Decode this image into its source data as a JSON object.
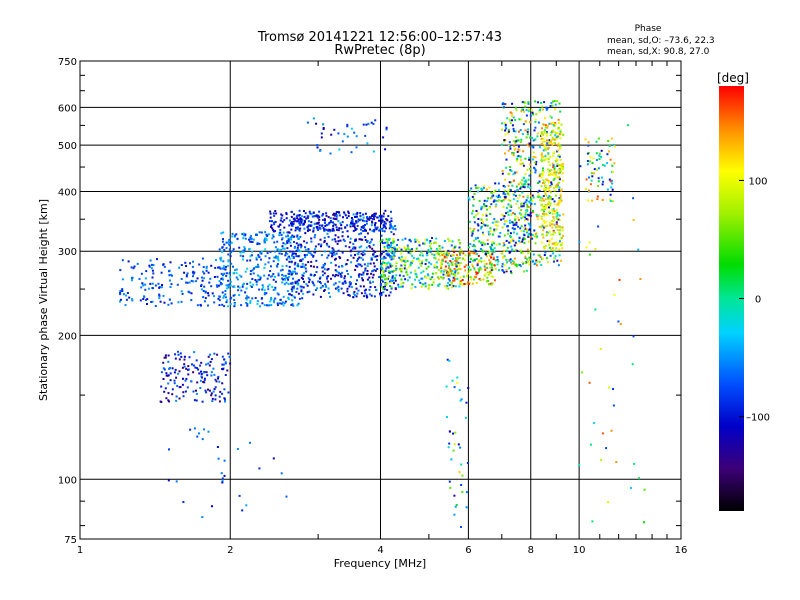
{
  "chart_data": {
    "type": "scatter",
    "title": "Tromsø 20141221 12:56:00–12:57:43",
    "subtitle": "RwPretec (8p)",
    "xlabel": "Frequency [MHz]",
    "ylabel": "Stationary phase Virtual Height [km]",
    "x_scale": "log",
    "y_scale": "log",
    "xlim": [
      1,
      16
    ],
    "ylim": [
      75,
      750
    ],
    "x_ticks": [
      "1",
      "2",
      "4",
      "6",
      "8",
      "10",
      "16"
    ],
    "y_ticks": [
      "750",
      "600",
      "500",
      "400",
      "300",
      "200",
      "100",
      "75"
    ],
    "grid": true,
    "stats": {
      "heading": "Phase",
      "line1": "mean, sd,O: –73.6, 22.3",
      "line2": "mean, sd,X:  90.8, 27.0"
    },
    "colorbar": {
      "label": "[deg]",
      "ticks": [
        "100",
        "0",
        "–100"
      ],
      "range": [
        -180,
        180
      ]
    },
    "clusters": [
      {
        "freq": [
          1.2,
          1.95
        ],
        "height": [
          230,
          290
        ],
        "phase": [
          -110,
          -40
        ],
        "n": 180
      },
      {
        "freq": [
          1.45,
          2.0
        ],
        "height": [
          145,
          185
        ],
        "phase": [
          -150,
          -50
        ],
        "n": 160
      },
      {
        "freq": [
          1.9,
          2.8
        ],
        "height": [
          230,
          330
        ],
        "phase": [
          -100,
          -20
        ],
        "n": 420
      },
      {
        "freq": [
          2.6,
          4.3
        ],
        "height": [
          240,
          360
        ],
        "phase": [
          -140,
          -40
        ],
        "n": 600
      },
      {
        "freq": [
          2.4,
          4.2
        ],
        "height": [
          330,
          365
        ],
        "phase": [
          -130,
          -70
        ],
        "n": 200
      },
      {
        "freq": [
          4.0,
          5.8
        ],
        "height": [
          250,
          320
        ],
        "phase": [
          -100,
          120
        ],
        "n": 350
      },
      {
        "freq": [
          5.2,
          6.8
        ],
        "height": [
          255,
          300
        ],
        "phase": [
          40,
          180
        ],
        "n": 160
      },
      {
        "freq": [
          6.0,
          8.0
        ],
        "height": [
          270,
          420
        ],
        "phase": [
          -120,
          140
        ],
        "n": 320
      },
      {
        "freq": [
          7.0,
          9.2
        ],
        "height": [
          280,
          620
        ],
        "phase": [
          -140,
          160
        ],
        "n": 520
      },
      {
        "freq": [
          8.4,
          9.3
        ],
        "height": [
          300,
          560
        ],
        "phase": [
          60,
          140
        ],
        "n": 240
      },
      {
        "freq": [
          10.3,
          11.8
        ],
        "height": [
          380,
          520
        ],
        "phase": [
          -120,
          170
        ],
        "n": 70
      },
      {
        "freq": [
          2.8,
          4.2
        ],
        "height": [
          480,
          570
        ],
        "phase": [
          -130,
          -30
        ],
        "n": 40
      },
      {
        "freq": [
          1.5,
          2.6
        ],
        "height": [
          78,
          130
        ],
        "phase": [
          -120,
          -40
        ],
        "n": 30
      },
      {
        "freq": [
          5.4,
          6.0
        ],
        "height": [
          78,
          180
        ],
        "phase": [
          -130,
          130
        ],
        "n": 40
      },
      {
        "freq": [
          10.0,
          14.0
        ],
        "height": [
          80,
          600
        ],
        "phase": [
          -100,
          170
        ],
        "n": 40
      }
    ]
  }
}
